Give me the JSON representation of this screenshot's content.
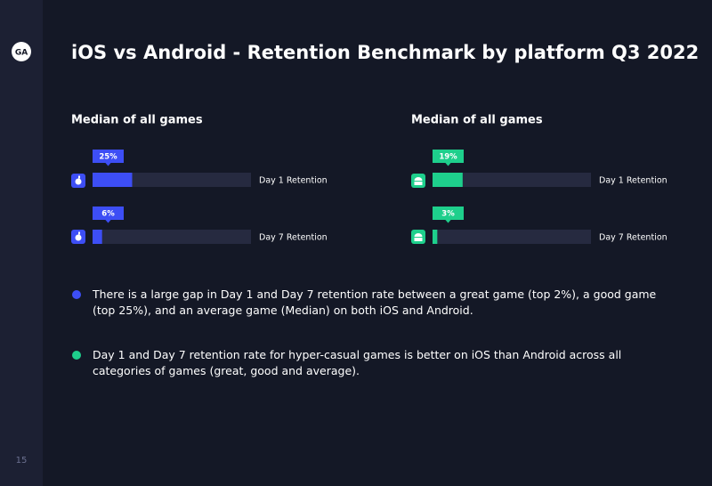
{
  "logo": "GA",
  "title": "iOS vs Android - Retention Benchmark by platform Q3 2022",
  "chart_data": [
    {
      "type": "bar",
      "title": "Median of all games",
      "categories": [
        "Day 1 Retention",
        "Day 7 Retention"
      ],
      "values": [
        25,
        6
      ],
      "value_labels": [
        "25%",
        "6%"
      ],
      "color": "#3d4ef5",
      "track_color": "#262a40",
      "xlim": [
        0,
        100
      ]
    },
    {
      "type": "bar",
      "title": "Median of all games",
      "categories": [
        "Day 1 Retention",
        "Day 7 Retention"
      ],
      "values": [
        19,
        3
      ],
      "value_labels": [
        "19%",
        "3%"
      ],
      "color": "#1ecf8c",
      "track_color": "#262a40",
      "xlim": [
        0,
        100
      ]
    }
  ],
  "notes": [
    {
      "color": "#3d4ef5",
      "text": "There is a large gap in Day 1 and Day 7 retention rate between a great game (top 2%), a good game (top 25%), and an average game (Median) on both iOS and Android."
    },
    {
      "color": "#1ecf8c",
      "text": "Day 1 and Day 7 retention rate for hyper-casual games is better on iOS than Android across all categories of games (great, good and average)."
    }
  ],
  "page_number": 15
}
